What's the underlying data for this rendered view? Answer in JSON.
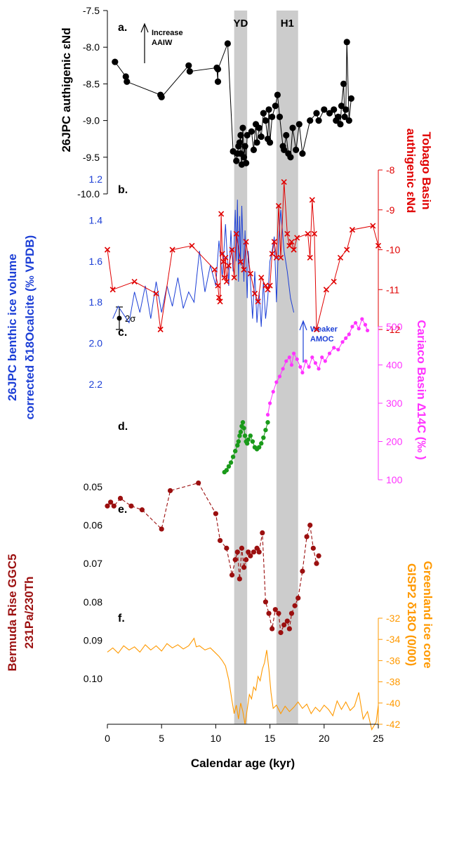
{
  "figure": {
    "x_label": "Calendar age (kyr)",
    "x_ticks": [
      "0",
      "5",
      "10",
      "15",
      "20",
      "25"
    ],
    "events": [
      {
        "label": "YD",
        "from": 11.7,
        "to": 12.9
      },
      {
        "label": "H1",
        "from": 15.6,
        "to": 17.6
      }
    ],
    "colors": {
      "panel_a": "#000000",
      "panel_b": "#e00000",
      "panel_c": "#1c3fd6",
      "panel_d": "#ff33ff",
      "panel_d_green": "#1a9a1a",
      "panel_e": "#9b0f0f",
      "panel_f": "#ff9900",
      "event_band": "#cccccc"
    }
  },
  "panels": {
    "a": {
      "letter": "a.",
      "axis_title": "26JPC authigenic εNd",
      "ticks": [
        "-7.5",
        "-8.0",
        "-8.5",
        "-9.0",
        "-9.5",
        "-10.0"
      ],
      "annotation": [
        "Increase",
        "AAIW"
      ],
      "error_label": "2σ"
    },
    "b": {
      "letter": "b.",
      "axis_title_1": "Tobago Basin",
      "axis_title_2": "authigenic εNd",
      "ticks": [
        "-8",
        "-9",
        "-10",
        "-11",
        "-12"
      ]
    },
    "c": {
      "letter": "c.",
      "axis_title_1": "26JPC benthic ice volume",
      "axis_title_2": "corrected δ18Ocalcite (‰ VPDB)",
      "ticks": [
        "1.2",
        "1.4",
        "1.6",
        "1.8",
        "2.0",
        "2.2"
      ],
      "annotation": [
        "Weaker",
        "AMOC"
      ]
    },
    "d": {
      "letter": "d.",
      "axis_title": "Cariaco Basin Δ14C (‰ )",
      "ticks": [
        "500",
        "400",
        "300",
        "200",
        "100"
      ]
    },
    "e": {
      "letter": "e.",
      "axis_title_1": "Bermuda Rise GGC5",
      "axis_title_2": "231Pa/230Th",
      "ticks": [
        "0.05",
        "0.06",
        "0.07",
        "0.08",
        "0.09",
        "0.10"
      ]
    },
    "f": {
      "letter": "f.",
      "axis_title_1": "Greenland ice core",
      "axis_title_2": "GISP2 δ18O (0/00)",
      "ticks": [
        "-32",
        "-34",
        "-36",
        "-38",
        "-40",
        "-42"
      ]
    }
  },
  "chart_data": [
    {
      "type": "scatter",
      "title": "a.",
      "ylabel": "26JPC authigenic εNd",
      "xlabel": "Calendar age (kyr)",
      "xlim": [
        0,
        25
      ],
      "ylim": [
        -10.0,
        -7.5
      ],
      "y_inverted": false,
      "x": [
        0.7,
        1.7,
        1.8,
        4.9,
        5.0,
        7.5,
        7.6,
        10.1,
        10.2,
        10.2,
        11.1,
        11.6,
        11.9,
        12.0,
        12.1,
        12.2,
        12.3,
        12.3,
        12.4,
        12.5,
        12.6,
        12.7,
        12.8,
        12.9,
        13.3,
        13.5,
        13.7,
        13.8,
        14.0,
        14.2,
        14.4,
        14.6,
        14.8,
        14.9,
        15.0,
        15.2,
        15.5,
        15.7,
        15.9,
        16.2,
        16.3,
        16.5,
        16.7,
        16.9,
        17.1,
        17.4,
        17.7,
        18.0,
        18.7,
        19.3,
        19.5,
        20.0,
        20.5,
        20.9,
        21.1,
        21.3,
        21.5,
        21.6,
        21.8,
        21.9,
        22.0,
        22.1,
        22.3,
        22.5
      ],
      "y": [
        -8.2,
        -8.4,
        -8.47,
        -8.65,
        -8.68,
        -8.25,
        -8.33,
        -8.28,
        -8.47,
        -8.3,
        -7.95,
        -9.42,
        -9.55,
        -9.45,
        -9.35,
        -9.3,
        -9.2,
        -9.45,
        -9.6,
        -9.1,
        -9.5,
        -9.35,
        -9.58,
        -9.2,
        -9.15,
        -9.4,
        -9.05,
        -9.3,
        -9.1,
        -9.22,
        -8.9,
        -9.0,
        -9.25,
        -8.85,
        -9.3,
        -8.95,
        -8.8,
        -8.65,
        -8.95,
        -9.35,
        -9.4,
        -9.2,
        -9.45,
        -9.5,
        -9.1,
        -9.4,
        -9.05,
        -9.45,
        -9.0,
        -8.9,
        -9.0,
        -8.85,
        -8.9,
        -8.85,
        -9.0,
        -8.95,
        -9.05,
        -8.8,
        -8.5,
        -8.95,
        -8.85,
        -7.93,
        -9.0,
        -8.7
      ]
    },
    {
      "type": "line",
      "title": "b.",
      "ylabel": "Tobago Basin authigenic εNd",
      "xlim": [
        0,
        25
      ],
      "ylim": [
        -12,
        -8
      ],
      "x": [
        0,
        0.5,
        2.5,
        4.5,
        4.9,
        6.0,
        7.8,
        9.9,
        10.2,
        10.3,
        10.4,
        10.5,
        10.6,
        10.7,
        10.8,
        10.9,
        11.0,
        11.2,
        11.5,
        11.7,
        11.9,
        12.3,
        12.6,
        12.8,
        13.2,
        13.6,
        13.9,
        14.2,
        14.6,
        14.8,
        15.0,
        15.2,
        15.4,
        15.6,
        15.8,
        16.0,
        16.3,
        16.6,
        16.8,
        17.0,
        17.2,
        17.5,
        18.5,
        18.7,
        18.9,
        19.1,
        19.3,
        20.2,
        20.9,
        21.5,
        22.1,
        22.6,
        24.5,
        25.0
      ],
      "y": [
        -10.0,
        -11.0,
        -10.8,
        -11.1,
        -12.0,
        -10.0,
        -9.9,
        -10.5,
        -10.9,
        -11.2,
        -11.3,
        -9.1,
        -10.1,
        -10.3,
        -10.7,
        -10.2,
        -10.8,
        -10.4,
        -10.0,
        -10.7,
        -9.6,
        -10.3,
        -10.5,
        -9.8,
        -10.6,
        -11.1,
        -11.3,
        -10.7,
        -10.9,
        -11.0,
        -10.9,
        -10.1,
        -9.8,
        -10.2,
        -8.9,
        -10.2,
        -8.3,
        -9.6,
        -9.9,
        -9.8,
        -10.0,
        -9.7,
        -9.6,
        -10.2,
        -8.75,
        -9.6,
        -12.0,
        -11.0,
        -10.8,
        -10.2,
        -10.0,
        -9.5,
        -9.4,
        -9.9
      ]
    },
    {
      "type": "line",
      "title": "c.",
      "ylabel": "26JPC benthic ice volume corrected δ18Ocalcite (‰ VPDB)",
      "xlim": [
        0,
        25
      ],
      "ylim": [
        2.2,
        1.2
      ],
      "x": [
        0.5,
        1.0,
        2.0,
        2.5,
        3.0,
        3.5,
        4.0,
        4.5,
        5.0,
        5.5,
        6.0,
        6.5,
        7.0,
        7.5,
        8.0,
        8.5,
        9.0,
        9.5,
        10.0,
        10.3,
        10.6,
        10.9,
        11.2,
        11.4,
        11.6,
        11.8,
        11.9,
        12.0,
        12.1,
        12.2,
        12.3,
        12.4,
        12.5,
        12.6,
        12.7,
        12.8,
        12.9,
        13.0,
        13.2,
        13.4,
        13.6,
        13.8,
        14.0,
        14.2,
        14.4,
        14.6,
        14.8,
        15.0,
        15.2,
        15.4,
        15.6,
        15.8,
        16.0,
        16.3,
        16.6,
        16.9,
        17.2
      ],
      "y": [
        1.88,
        1.82,
        1.9,
        1.75,
        1.85,
        1.72,
        1.88,
        1.7,
        1.85,
        1.72,
        1.82,
        1.68,
        1.83,
        1.75,
        1.8,
        1.55,
        1.75,
        1.62,
        1.72,
        1.5,
        1.68,
        1.42,
        1.72,
        1.45,
        1.65,
        1.35,
        1.6,
        1.3,
        1.7,
        1.38,
        1.62,
        1.33,
        1.5,
        1.7,
        1.45,
        1.6,
        1.78,
        1.55,
        1.7,
        1.88,
        1.65,
        1.9,
        1.75,
        1.92,
        1.7,
        1.88,
        1.78,
        1.6,
        1.55,
        1.48,
        1.8,
        1.5,
        1.35,
        1.55,
        1.65,
        1.78,
        1.85
      ]
    },
    {
      "type": "scatter",
      "title": "d.",
      "ylabel": "Cariaco Basin Δ14C (‰ )",
      "xlim": [
        0,
        25
      ],
      "ylim": [
        60,
        560
      ],
      "series": [
        {
          "x": [
            10.8,
            11.0,
            11.2,
            11.4,
            11.6,
            11.8,
            12.0,
            12.1,
            12.2,
            12.3,
            12.4,
            12.5,
            12.6,
            12.7,
            12.8,
            12.9,
            13.0,
            13.2,
            13.4,
            13.6,
            13.8,
            14.0,
            14.2,
            14.4,
            14.6,
            14.8
          ],
          "y": [
            120,
            125,
            135,
            145,
            160,
            175,
            190,
            200,
            215,
            225,
            240,
            250,
            235,
            215,
            200,
            195,
            205,
            215,
            200,
            185,
            180,
            185,
            195,
            210,
            230,
            250
          ]
        },
        {
          "x": [
            14.8,
            15.0,
            15.3,
            15.6,
            15.9,
            16.2,
            16.5,
            16.8,
            17.0,
            17.2,
            17.5,
            17.8,
            18.0,
            18.3,
            18.6,
            18.9,
            19.2,
            19.5,
            19.8,
            20.1,
            20.5,
            20.9,
            21.3,
            21.7,
            22.0,
            22.3,
            22.6,
            22.9,
            23.2,
            23.5,
            23.8,
            24.0
          ],
          "y": [
            270,
            300,
            330,
            355,
            370,
            390,
            410,
            420,
            400,
            430,
            415,
            395,
            380,
            410,
            395,
            420,
            405,
            390,
            420,
            410,
            430,
            445,
            440,
            460,
            470,
            480,
            500,
            510,
            495,
            520,
            505,
            490
          ]
        }
      ]
    },
    {
      "type": "line",
      "title": "e.",
      "ylabel": "Bermuda Rise GGC5 231Pa/230Th",
      "xlim": [
        0,
        25
      ],
      "ylim": [
        0.1,
        0.05
      ],
      "x": [
        0.0,
        0.3,
        0.6,
        1.2,
        2.2,
        3.2,
        5.0,
        5.8,
        8.4,
        10.0,
        10.4,
        11.0,
        11.5,
        11.8,
        12.0,
        12.2,
        12.4,
        12.6,
        12.8,
        13.0,
        13.2,
        13.5,
        13.8,
        14.0,
        14.3,
        14.6,
        14.9,
        15.2,
        15.5,
        15.8,
        16.0,
        16.3,
        16.6,
        16.8,
        17.0,
        17.3,
        17.6,
        18.0,
        18.4,
        18.7,
        19.0,
        19.3,
        19.5
      ],
      "y": [
        0.055,
        0.054,
        0.055,
        0.053,
        0.055,
        0.056,
        0.061,
        0.051,
        0.049,
        0.057,
        0.064,
        0.066,
        0.073,
        0.069,
        0.067,
        0.074,
        0.066,
        0.071,
        0.069,
        0.067,
        0.068,
        0.067,
        0.066,
        0.067,
        0.062,
        0.08,
        0.083,
        0.087,
        0.082,
        0.083,
        0.088,
        0.086,
        0.085,
        0.087,
        0.083,
        0.081,
        0.079,
        0.072,
        0.063,
        0.06,
        0.066,
        0.07,
        0.068
      ]
    },
    {
      "type": "line",
      "title": "f.",
      "ylabel": "Greenland ice core GISP2 δ18O (0/00)",
      "xlim": [
        0,
        25
      ],
      "ylim": [
        -43,
        -31
      ],
      "x": [
        0,
        0.5,
        1.0,
        1.5,
        2.0,
        2.5,
        3.0,
        3.5,
        4.0,
        4.5,
        5.0,
        5.5,
        6.0,
        6.5,
        7.0,
        7.5,
        8.0,
        8.2,
        8.5,
        9.0,
        9.5,
        10.0,
        10.3,
        10.6,
        10.9,
        11.2,
        11.5,
        11.7,
        11.9,
        12.1,
        12.3,
        12.5,
        12.7,
        12.9,
        13.1,
        13.3,
        13.5,
        13.7,
        13.9,
        14.1,
        14.3,
        14.5,
        14.7,
        14.9,
        15.1,
        15.3,
        15.6,
        16.0,
        16.4,
        16.8,
        17.2,
        17.6,
        18.0,
        18.4,
        18.8,
        19.2,
        19.6,
        20.0,
        20.4,
        20.8,
        21.2,
        21.6,
        22.0,
        22.4,
        22.8,
        23.2,
        23.6,
        24.0,
        24.4,
        24.8,
        25.0
      ],
      "y": [
        -35.2,
        -34.8,
        -35.3,
        -34.6,
        -35.0,
        -34.7,
        -35.2,
        -34.5,
        -35.0,
        -34.6,
        -35.1,
        -34.4,
        -34.8,
        -34.5,
        -34.9,
        -34.6,
        -33.9,
        -34.7,
        -34.6,
        -35.0,
        -34.8,
        -35.3,
        -35.6,
        -36.0,
        -36.5,
        -37.8,
        -39.8,
        -41.0,
        -40.2,
        -41.5,
        -40.0,
        -40.8,
        -42.0,
        -40.6,
        -39.2,
        -39.6,
        -38.5,
        -38.8,
        -37.5,
        -37.9,
        -36.8,
        -36.2,
        -35.0,
        -36.8,
        -39.0,
        -40.5,
        -40.2,
        -41.0,
        -40.3,
        -40.8,
        -40.4,
        -39.9,
        -40.5,
        -40.1,
        -41.0,
        -40.4,
        -40.8,
        -40.2,
        -40.6,
        -41.2,
        -39.8,
        -40.6,
        -39.9,
        -40.7,
        -40.3,
        -39.0,
        -41.5,
        -40.8,
        -42.5,
        -41.8,
        -40.2
      ]
    }
  ]
}
